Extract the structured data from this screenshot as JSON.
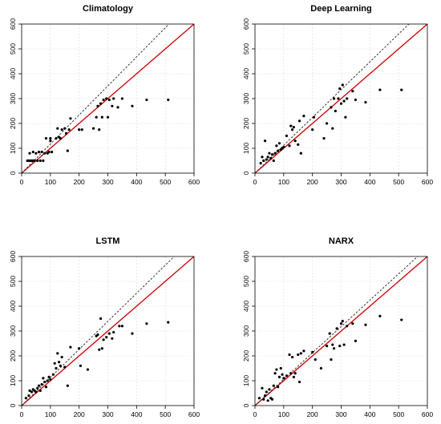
{
  "figure": {
    "layout": "2x2 grid"
  },
  "chart_data": [
    {
      "type": "scatter",
      "title": "Climatology",
      "xlabel": "",
      "ylabel": "",
      "xlim": [
        0,
        600
      ],
      "ylim": [
        0,
        600
      ],
      "xticks": [
        0,
        100,
        200,
        300,
        400,
        500,
        600
      ],
      "yticks": [
        0,
        100,
        200,
        300,
        400,
        500,
        600
      ],
      "grid": true,
      "reference_lines": [
        {
          "kind": "identity",
          "style": "solid",
          "color": "#cc0000",
          "slope": 1.0
        },
        {
          "kind": "fit",
          "style": "dotted",
          "color": "#333333",
          "slope": 1.17
        }
      ],
      "points": [
        [
          20,
          50
        ],
        [
          25,
          50
        ],
        [
          30,
          50
        ],
        [
          35,
          50
        ],
        [
          40,
          50
        ],
        [
          45,
          50
        ],
        [
          28,
          80
        ],
        [
          40,
          85
        ],
        [
          50,
          80
        ],
        [
          55,
          50
        ],
        [
          60,
          85
        ],
        [
          65,
          50
        ],
        [
          70,
          85
        ],
        [
          75,
          50
        ],
        [
          80,
          80
        ],
        [
          85,
          140
        ],
        [
          90,
          80
        ],
        [
          95,
          85
        ],
        [
          100,
          140
        ],
        [
          100,
          130
        ],
        [
          105,
          85
        ],
        [
          120,
          140
        ],
        [
          125,
          180
        ],
        [
          130,
          145
        ],
        [
          135,
          140
        ],
        [
          140,
          175
        ],
        [
          150,
          180
        ],
        [
          155,
          160
        ],
        [
          160,
          90
        ],
        [
          165,
          175
        ],
        [
          170,
          220
        ],
        [
          200,
          175
        ],
        [
          210,
          175
        ],
        [
          250,
          180
        ],
        [
          260,
          225
        ],
        [
          265,
          270
        ],
        [
          270,
          175
        ],
        [
          275,
          280
        ],
        [
          280,
          225
        ],
        [
          285,
          295
        ],
        [
          295,
          300
        ],
        [
          300,
          225
        ],
        [
          305,
          295
        ],
        [
          315,
          270
        ],
        [
          320,
          300
        ],
        [
          335,
          265
        ],
        [
          350,
          300
        ],
        [
          385,
          270
        ],
        [
          435,
          295
        ],
        [
          510,
          295
        ]
      ]
    },
    {
      "type": "scatter",
      "title": "Deep Learning",
      "xlabel": "",
      "ylabel": "",
      "xlim": [
        0,
        600
      ],
      "ylim": [
        0,
        600
      ],
      "xticks": [
        0,
        100,
        200,
        300,
        400,
        500,
        600
      ],
      "yticks": [
        0,
        100,
        200,
        300,
        400,
        500,
        600
      ],
      "grid": true,
      "reference_lines": [
        {
          "kind": "identity",
          "style": "solid",
          "color": "#cc0000",
          "slope": 1.0
        },
        {
          "kind": "fit",
          "style": "dotted",
          "color": "#333333",
          "slope": 1.12
        }
      ],
      "points": [
        [
          20,
          40
        ],
        [
          25,
          65
        ],
        [
          30,
          50
        ],
        [
          35,
          130
        ],
        [
          40,
          55
        ],
        [
          45,
          65
        ],
        [
          50,
          80
        ],
        [
          55,
          60
        ],
        [
          60,
          75
        ],
        [
          65,
          50
        ],
        [
          70,
          80
        ],
        [
          75,
          110
        ],
        [
          80,
          90
        ],
        [
          85,
          120
        ],
        [
          90,
          95
        ],
        [
          95,
          100
        ],
        [
          100,
          105
        ],
        [
          110,
          150
        ],
        [
          120,
          110
        ],
        [
          125,
          190
        ],
        [
          130,
          175
        ],
        [
          135,
          185
        ],
        [
          140,
          130
        ],
        [
          150,
          115
        ],
        [
          155,
          210
        ],
        [
          160,
          80
        ],
        [
          170,
          230
        ],
        [
          200,
          175
        ],
        [
          205,
          225
        ],
        [
          240,
          140
        ],
        [
          250,
          200
        ],
        [
          265,
          265
        ],
        [
          270,
          180
        ],
        [
          275,
          300
        ],
        [
          280,
          250
        ],
        [
          290,
          300
        ],
        [
          295,
          340
        ],
        [
          300,
          280
        ],
        [
          305,
          355
        ],
        [
          310,
          290
        ],
        [
          315,
          225
        ],
        [
          320,
          300
        ],
        [
          340,
          330
        ],
        [
          350,
          295
        ],
        [
          385,
          285
        ],
        [
          435,
          335
        ],
        [
          510,
          335
        ]
      ]
    },
    {
      "type": "scatter",
      "title": "LSTM",
      "xlabel": "",
      "ylabel": "",
      "xlim": [
        0,
        600
      ],
      "ylim": [
        0,
        600
      ],
      "xticks": [
        0,
        100,
        200,
        300,
        400,
        500,
        600
      ],
      "yticks": [
        0,
        100,
        200,
        300,
        400,
        500,
        600
      ],
      "grid": true,
      "reference_lines": [
        {
          "kind": "identity",
          "style": "solid",
          "color": "#cc0000",
          "slope": 1.0
        },
        {
          "kind": "fit",
          "style": "dotted",
          "color": "#333333",
          "slope": 1.13
        }
      ],
      "points": [
        [
          15,
          30
        ],
        [
          25,
          40
        ],
        [
          28,
          60
        ],
        [
          35,
          55
        ],
        [
          40,
          65
        ],
        [
          45,
          60
        ],
        [
          50,
          55
        ],
        [
          55,
          70
        ],
        [
          60,
          80
        ],
        [
          65,
          60
        ],
        [
          70,
          85
        ],
        [
          75,
          110
        ],
        [
          80,
          95
        ],
        [
          85,
          75
        ],
        [
          90,
          100
        ],
        [
          95,
          115
        ],
        [
          100,
          105
        ],
        [
          110,
          125
        ],
        [
          115,
          170
        ],
        [
          120,
          150
        ],
        [
          125,
          210
        ],
        [
          130,
          175
        ],
        [
          135,
          160
        ],
        [
          140,
          195
        ],
        [
          150,
          155
        ],
        [
          160,
          80
        ],
        [
          170,
          235
        ],
        [
          200,
          230
        ],
        [
          205,
          160
        ],
        [
          230,
          145
        ],
        [
          260,
          280
        ],
        [
          265,
          285
        ],
        [
          270,
          225
        ],
        [
          275,
          350
        ],
        [
          280,
          230
        ],
        [
          285,
          265
        ],
        [
          295,
          275
        ],
        [
          305,
          290
        ],
        [
          315,
          270
        ],
        [
          320,
          295
        ],
        [
          340,
          320
        ],
        [
          350,
          320
        ],
        [
          385,
          290
        ],
        [
          435,
          330
        ],
        [
          510,
          335
        ]
      ]
    },
    {
      "type": "scatter",
      "title": "NARX",
      "xlabel": "",
      "ylabel": "",
      "xlim": [
        0,
        600
      ],
      "ylim": [
        0,
        600
      ],
      "xticks": [
        0,
        100,
        200,
        300,
        400,
        500,
        600
      ],
      "yticks": [
        0,
        100,
        200,
        300,
        400,
        500,
        600
      ],
      "grid": true,
      "reference_lines": [
        {
          "kind": "identity",
          "style": "solid",
          "color": "#cc0000",
          "slope": 1.0
        },
        {
          "kind": "fit",
          "style": "dotted",
          "color": "#333333",
          "slope": 1.06
        }
      ],
      "points": [
        [
          15,
          30
        ],
        [
          25,
          70
        ],
        [
          30,
          25
        ],
        [
          35,
          40
        ],
        [
          40,
          55
        ],
        [
          45,
          20
        ],
        [
          50,
          65
        ],
        [
          55,
          30
        ],
        [
          60,
          25
        ],
        [
          65,
          80
        ],
        [
          70,
          130
        ],
        [
          75,
          145
        ],
        [
          80,
          75
        ],
        [
          85,
          115
        ],
        [
          90,
          150
        ],
        [
          95,
          125
        ],
        [
          100,
          110
        ],
        [
          110,
          120
        ],
        [
          120,
          205
        ],
        [
          125,
          130
        ],
        [
          130,
          195
        ],
        [
          135,
          115
        ],
        [
          140,
          130
        ],
        [
          150,
          205
        ],
        [
          155,
          95
        ],
        [
          160,
          210
        ],
        [
          170,
          220
        ],
        [
          200,
          215
        ],
        [
          210,
          185
        ],
        [
          230,
          150
        ],
        [
          250,
          240
        ],
        [
          260,
          290
        ],
        [
          265,
          185
        ],
        [
          270,
          245
        ],
        [
          275,
          230
        ],
        [
          285,
          310
        ],
        [
          295,
          240
        ],
        [
          300,
          330
        ],
        [
          305,
          340
        ],
        [
          310,
          245
        ],
        [
          320,
          320
        ],
        [
          340,
          330
        ],
        [
          350,
          260
        ],
        [
          385,
          325
        ],
        [
          435,
          360
        ],
        [
          510,
          345
        ]
      ]
    }
  ]
}
